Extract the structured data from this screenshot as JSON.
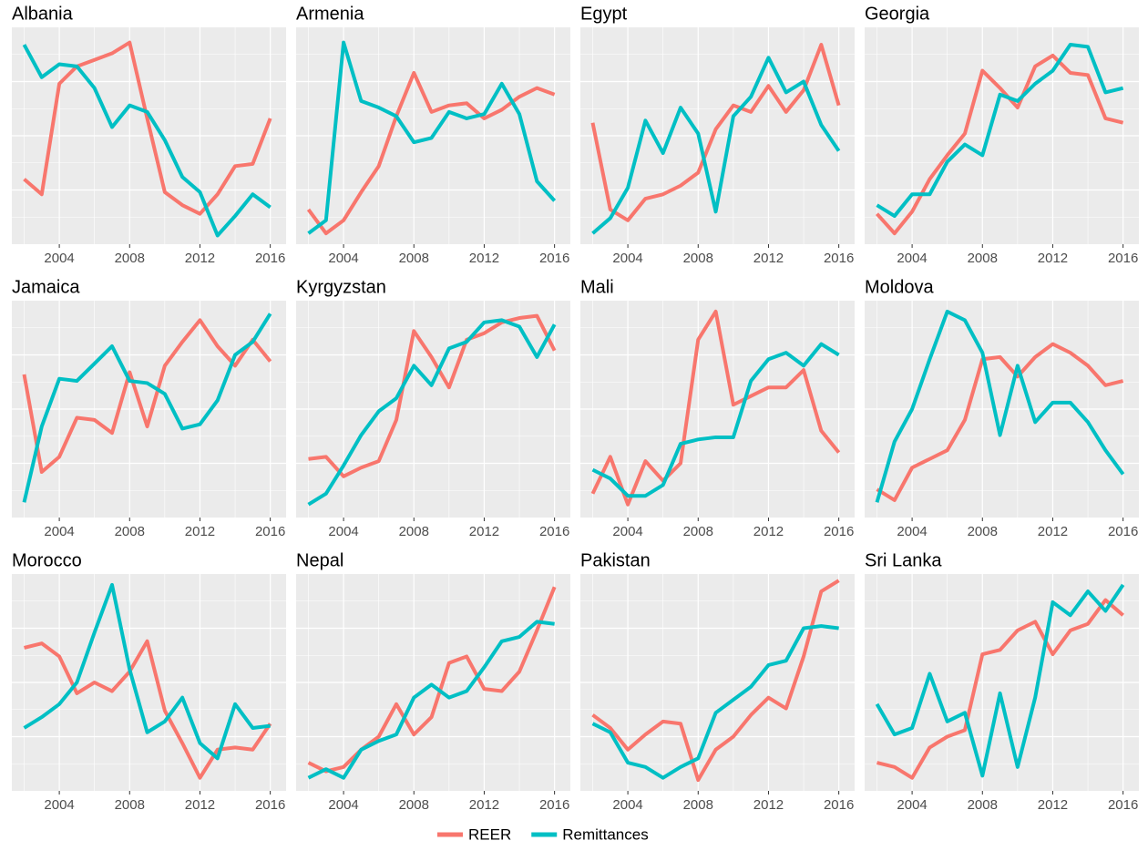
{
  "chart_data": [
    {
      "type": "line",
      "title": "Albania",
      "x": [
        2002,
        2003,
        2004,
        2005,
        2006,
        2007,
        2008,
        2009,
        2010,
        2011,
        2012,
        2013,
        2014,
        2015,
        2016
      ],
      "xlim": [
        2001.3,
        2016.9
      ],
      "xticks": [
        2004,
        2008,
        2012,
        2016
      ],
      "ylim": [
        0,
        100
      ],
      "grid": true,
      "series": [
        {
          "name": "REER",
          "color": "#f8766d",
          "values": [
            30,
            23,
            74,
            82,
            85,
            88,
            93,
            58,
            24,
            18,
            14,
            23,
            36,
            37,
            58
          ]
        },
        {
          "name": "Remittances",
          "color": "#00bfc4",
          "values": [
            92,
            77,
            83,
            82,
            72,
            54,
            64,
            61,
            48,
            31,
            24,
            4,
            13,
            23,
            17
          ]
        }
      ]
    },
    {
      "type": "line",
      "title": "Armenia",
      "x": [
        2002,
        2003,
        2004,
        2005,
        2006,
        2007,
        2008,
        2009,
        2010,
        2011,
        2012,
        2013,
        2014,
        2015,
        2016
      ],
      "xlim": [
        2001.3,
        2016.9
      ],
      "xticks": [
        2004,
        2008,
        2012,
        2016
      ],
      "ylim": [
        0,
        100
      ],
      "grid": true,
      "series": [
        {
          "name": "REER",
          "color": "#f8766d",
          "values": [
            16,
            5,
            11,
            24,
            36,
            59,
            79,
            61,
            64,
            65,
            58,
            62,
            68,
            72,
            69
          ]
        },
        {
          "name": "Remittances",
          "color": "#00bfc4",
          "values": [
            5,
            11,
            93,
            66,
            63,
            59,
            47,
            49,
            61,
            58,
            60,
            74,
            60,
            29,
            20
          ]
        }
      ]
    },
    {
      "type": "line",
      "title": "Egypt",
      "x": [
        2002,
        2003,
        2004,
        2005,
        2006,
        2007,
        2008,
        2009,
        2010,
        2011,
        2012,
        2013,
        2014,
        2015,
        2016
      ],
      "xlim": [
        2001.3,
        2016.9
      ],
      "xticks": [
        2004,
        2008,
        2012,
        2016
      ],
      "ylim": [
        0,
        100
      ],
      "grid": true,
      "series": [
        {
          "name": "REER",
          "color": "#f8766d",
          "values": [
            56,
            16,
            11,
            21,
            23,
            27,
            33,
            53,
            64,
            61,
            73,
            61,
            71,
            92,
            64
          ]
        },
        {
          "name": "Remittances",
          "color": "#00bfc4",
          "values": [
            5,
            12,
            26,
            57,
            42,
            63,
            51,
            15,
            59,
            68,
            86,
            70,
            75,
            55,
            43
          ]
        }
      ]
    },
    {
      "type": "line",
      "title": "Georgia",
      "x": [
        2002,
        2003,
        2004,
        2005,
        2006,
        2007,
        2008,
        2009,
        2010,
        2011,
        2012,
        2013,
        2014,
        2015,
        2016
      ],
      "xlim": [
        2001.3,
        2016.9
      ],
      "xticks": [
        2004,
        2008,
        2012,
        2016
      ],
      "ylim": [
        0,
        100
      ],
      "grid": true,
      "series": [
        {
          "name": "REER",
          "color": "#f8766d",
          "values": [
            14,
            5,
            15,
            30,
            41,
            51,
            80,
            72,
            63,
            82,
            87,
            79,
            78,
            58,
            56
          ]
        },
        {
          "name": "Remittances",
          "color": "#00bfc4",
          "values": [
            18,
            13,
            23,
            23,
            38,
            46,
            41,
            69,
            66,
            74,
            80,
            92,
            91,
            70,
            72
          ]
        }
      ]
    },
    {
      "type": "line",
      "title": "Jamaica",
      "x": [
        2002,
        2003,
        2004,
        2005,
        2006,
        2007,
        2008,
        2009,
        2010,
        2011,
        2012,
        2013,
        2014,
        2015,
        2016
      ],
      "xlim": [
        2001.3,
        2016.9
      ],
      "xticks": [
        2004,
        2008,
        2012,
        2016
      ],
      "ylim": [
        0,
        100
      ],
      "grid": true,
      "series": [
        {
          "name": "REER",
          "color": "#f8766d",
          "values": [
            66,
            21,
            28,
            46,
            45,
            39,
            67,
            42,
            70,
            81,
            91,
            79,
            70,
            82,
            72
          ]
        },
        {
          "name": "Remittances",
          "color": "#00bfc4",
          "values": [
            7,
            42,
            64,
            63,
            71,
            79,
            63,
            62,
            57,
            41,
            43,
            54,
            75,
            81,
            94
          ]
        }
      ]
    },
    {
      "type": "line",
      "title": "Kyrgyzstan",
      "x": [
        2002,
        2003,
        2004,
        2005,
        2006,
        2007,
        2008,
        2009,
        2010,
        2011,
        2012,
        2013,
        2014,
        2015,
        2016
      ],
      "xlim": [
        2001.3,
        2016.9
      ],
      "xticks": [
        2004,
        2008,
        2012,
        2016
      ],
      "ylim": [
        0,
        100
      ],
      "grid": true,
      "series": [
        {
          "name": "REER",
          "color": "#f8766d",
          "values": [
            27,
            28,
            19,
            23,
            26,
            45,
            86,
            74,
            60,
            82,
            85,
            90,
            92,
            93,
            77
          ]
        },
        {
          "name": "Remittances",
          "color": "#00bfc4",
          "values": [
            6,
            11,
            24,
            38,
            49,
            55,
            70,
            61,
            78,
            81,
            90,
            91,
            88,
            74,
            89
          ]
        }
      ]
    },
    {
      "type": "line",
      "title": "Mali",
      "x": [
        2002,
        2003,
        2004,
        2005,
        2006,
        2007,
        2008,
        2009,
        2010,
        2011,
        2012,
        2013,
        2014,
        2015,
        2016
      ],
      "xlim": [
        2001.3,
        2016.9
      ],
      "xticks": [
        2004,
        2008,
        2012,
        2016
      ],
      "ylim": [
        0,
        100
      ],
      "grid": true,
      "series": [
        {
          "name": "REER",
          "color": "#f8766d",
          "values": [
            11,
            28,
            6,
            26,
            17,
            25,
            82,
            95,
            52,
            56,
            60,
            60,
            68,
            40,
            30
          ]
        },
        {
          "name": "Remittances",
          "color": "#00bfc4",
          "values": [
            22,
            18,
            10,
            10,
            15,
            34,
            36,
            37,
            37,
            63,
            73,
            76,
            70,
            80,
            75
          ]
        }
      ]
    },
    {
      "type": "line",
      "title": "Moldova",
      "x": [
        2002,
        2003,
        2004,
        2005,
        2006,
        2007,
        2008,
        2009,
        2010,
        2011,
        2012,
        2013,
        2014,
        2015,
        2016
      ],
      "xlim": [
        2001.3,
        2016.9
      ],
      "xticks": [
        2004,
        2008,
        2012,
        2016
      ],
      "ylim": [
        0,
        100
      ],
      "grid": true,
      "series": [
        {
          "name": "REER",
          "color": "#f8766d",
          "values": [
            13,
            8,
            23,
            27,
            31,
            45,
            73,
            74,
            65,
            74,
            80,
            76,
            70,
            61,
            63
          ]
        },
        {
          "name": "Remittances",
          "color": "#00bfc4",
          "values": [
            7,
            35,
            50,
            73,
            95,
            91,
            76,
            38,
            70,
            44,
            53,
            53,
            44,
            31,
            20
          ]
        }
      ]
    },
    {
      "type": "line",
      "title": "Morocco",
      "x": [
        2002,
        2003,
        2004,
        2005,
        2006,
        2007,
        2008,
        2009,
        2010,
        2011,
        2012,
        2013,
        2014,
        2015,
        2016
      ],
      "xlim": [
        2001.3,
        2016.9
      ],
      "xticks": [
        2004,
        2008,
        2012,
        2016
      ],
      "ylim": [
        0,
        100
      ],
      "grid": true,
      "series": [
        {
          "name": "REER",
          "color": "#f8766d",
          "values": [
            66,
            68,
            62,
            45,
            50,
            46,
            55,
            69,
            37,
            22,
            6,
            19,
            20,
            19,
            31
          ]
        },
        {
          "name": "Remittances",
          "color": "#00bfc4",
          "values": [
            29,
            34,
            40,
            50,
            73,
            95,
            56,
            27,
            32,
            43,
            22,
            15,
            40,
            29,
            30
          ]
        }
      ]
    },
    {
      "type": "line",
      "title": "Nepal",
      "x": [
        2002,
        2003,
        2004,
        2005,
        2006,
        2007,
        2008,
        2009,
        2010,
        2011,
        2012,
        2013,
        2014,
        2015,
        2016
      ],
      "xlim": [
        2001.3,
        2016.9
      ],
      "xticks": [
        2004,
        2008,
        2012,
        2016
      ],
      "ylim": [
        0,
        100
      ],
      "grid": true,
      "series": [
        {
          "name": "REER",
          "color": "#f8766d",
          "values": [
            13,
            9,
            11,
            19,
            25,
            40,
            26,
            34,
            59,
            62,
            47,
            46,
            55,
            74,
            94
          ]
        },
        {
          "name": "Remittances",
          "color": "#00bfc4",
          "values": [
            6,
            10,
            6,
            19,
            23,
            26,
            43,
            49,
            43,
            46,
            57,
            69,
            71,
            78,
            77
          ]
        }
      ]
    },
    {
      "type": "line",
      "title": "Pakistan",
      "x": [
        2002,
        2003,
        2004,
        2005,
        2006,
        2007,
        2008,
        2009,
        2010,
        2011,
        2012,
        2013,
        2014,
        2015,
        2016
      ],
      "xlim": [
        2001.3,
        2016.9
      ],
      "xticks": [
        2004,
        2008,
        2012,
        2016
      ],
      "ylim": [
        0,
        100
      ],
      "grid": true,
      "series": [
        {
          "name": "REER",
          "color": "#f8766d",
          "values": [
            35,
            29,
            19,
            26,
            32,
            31,
            5,
            19,
            25,
            35,
            43,
            38,
            62,
            92,
            97
          ]
        },
        {
          "name": "Remittances",
          "color": "#00bfc4",
          "values": [
            31,
            27,
            13,
            11,
            6,
            11,
            15,
            36,
            42,
            48,
            58,
            60,
            75,
            76,
            75
          ]
        }
      ]
    },
    {
      "type": "line",
      "title": "Sri Lanka",
      "x": [
        2002,
        2003,
        2004,
        2005,
        2006,
        2007,
        2008,
        2009,
        2010,
        2011,
        2012,
        2013,
        2014,
        2015,
        2016
      ],
      "xlim": [
        2001.3,
        2016.9
      ],
      "xticks": [
        2004,
        2008,
        2012,
        2016
      ],
      "ylim": [
        0,
        100
      ],
      "grid": true,
      "series": [
        {
          "name": "REER",
          "color": "#f8766d",
          "values": [
            13,
            11,
            6,
            20,
            25,
            28,
            63,
            65,
            74,
            78,
            63,
            74,
            77,
            88,
            81
          ]
        },
        {
          "name": "Remittances",
          "color": "#00bfc4",
          "values": [
            40,
            26,
            29,
            54,
            32,
            36,
            7,
            45,
            11,
            43,
            87,
            81,
            92,
            83,
            95
          ]
        }
      ]
    }
  ]
}
